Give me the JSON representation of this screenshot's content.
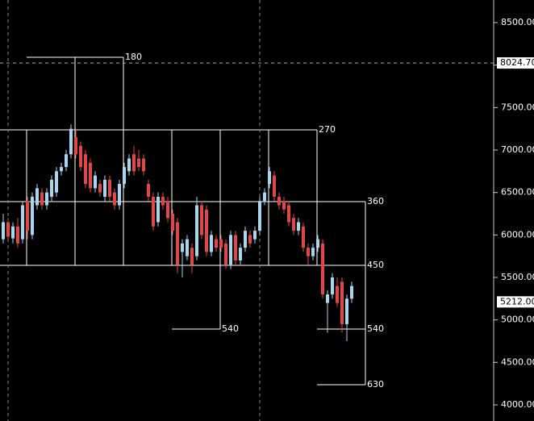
{
  "chart_data": {
    "type": "candlestick",
    "up_color": "#a9d6ee",
    "down_color": "#e04848",
    "ylim": [
      3810,
      8766
    ],
    "yticks": [
      {
        "value": 8500,
        "label": "8500.00"
      },
      {
        "value": 8000,
        "label": "8000.00"
      },
      {
        "value": 7500,
        "label": "7500.00"
      },
      {
        "value": 7000,
        "label": "7000.00"
      },
      {
        "value": 6500,
        "label": "6500.00"
      },
      {
        "value": 6000,
        "label": "6000.00"
      },
      {
        "value": 5500,
        "label": "5500.00"
      },
      {
        "value": 5000,
        "label": "5000.00"
      },
      {
        "value": 4500,
        "label": "4500.00"
      },
      {
        "value": 4000,
        "label": "4000.00"
      }
    ],
    "price_markers": [
      {
        "value": 8024.7,
        "label": "8024.70"
      },
      {
        "value": 5212,
        "label": "5212.00"
      }
    ],
    "annotations": [
      "180",
      "270",
      "360",
      "450",
      "540",
      "540",
      "630"
    ],
    "ohlc": [
      [
        5950,
        6250,
        5900,
        6150
      ],
      [
        6150,
        6200,
        5950,
        5980
      ],
      [
        5960,
        6150,
        5900,
        6100
      ],
      [
        6100,
        6200,
        5850,
        5900
      ],
      [
        5950,
        6400,
        5900,
        6350
      ],
      [
        6400,
        6450,
        5950,
        6050
      ],
      [
        6000,
        6500,
        5950,
        6450
      ],
      [
        6350,
        6600,
        6300,
        6550
      ],
      [
        6500,
        6550,
        6300,
        6350
      ],
      [
        6350,
        6550,
        6300,
        6500
      ],
      [
        6450,
        6700,
        6400,
        6650
      ],
      [
        6500,
        6800,
        6450,
        6750
      ],
      [
        6750,
        6850,
        6700,
        6800
      ],
      [
        6800,
        7000,
        6750,
        6950
      ],
      [
        6950,
        7300,
        6900,
        7250
      ],
      [
        7150,
        7250,
        6900,
        6950
      ],
      [
        7050,
        7100,
        6750,
        6800
      ],
      [
        6950,
        7000,
        6550,
        6600
      ],
      [
        6850,
        6900,
        6500,
        6550
      ],
      [
        6550,
        6750,
        6500,
        6700
      ],
      [
        6600,
        6650,
        6450,
        6500
      ],
      [
        6450,
        6700,
        6400,
        6650
      ],
      [
        6650,
        6700,
        6400,
        6450
      ],
      [
        6500,
        6550,
        6300,
        6350
      ],
      [
        6350,
        6650,
        6300,
        6600
      ],
      [
        6600,
        6850,
        6550,
        6800
      ],
      [
        6750,
        6950,
        6700,
        6900
      ],
      [
        6950,
        7050,
        6700,
        6750
      ],
      [
        6900,
        7000,
        6750,
        6800
      ],
      [
        6900,
        6950,
        6700,
        6750
      ],
      [
        6600,
        6650,
        6400,
        6450
      ],
      [
        6450,
        6500,
        6050,
        6100
      ],
      [
        6150,
        6500,
        6100,
        6450
      ],
      [
        6450,
        6500,
        6300,
        6350
      ],
      [
        6400,
        6450,
        6150,
        6200
      ],
      [
        6250,
        6300,
        6000,
        6050
      ],
      [
        6150,
        6200,
        5550,
        5650
      ],
      [
        5800,
        5950,
        5500,
        5900
      ],
      [
        5750,
        6000,
        5700,
        5950
      ],
      [
        5850,
        5900,
        5550,
        5650
      ],
      [
        5750,
        6450,
        5700,
        6350
      ],
      [
        6350,
        6400,
        5950,
        6000
      ],
      [
        6300,
        6350,
        5750,
        5800
      ],
      [
        5800,
        6050,
        5750,
        6000
      ],
      [
        5950,
        6000,
        5800,
        5850
      ],
      [
        5950,
        6000,
        5800,
        5850
      ],
      [
        5900,
        5950,
        5600,
        5650
      ],
      [
        5650,
        6050,
        5600,
        6000
      ],
      [
        6000,
        6050,
        5650,
        5700
      ],
      [
        5700,
        5900,
        5650,
        5850
      ],
      [
        5850,
        6100,
        5800,
        6050
      ],
      [
        6000,
        6050,
        5850,
        5900
      ],
      [
        5950,
        6100,
        5900,
        6050
      ],
      [
        6050,
        6450,
        6000,
        6400
      ],
      [
        6400,
        6550,
        6350,
        6500
      ],
      [
        6600,
        6800,
        6550,
        6750
      ],
      [
        6700,
        6750,
        6400,
        6450
      ],
      [
        6450,
        6500,
        6300,
        6350
      ],
      [
        6400,
        6450,
        6250,
        6300
      ],
      [
        6350,
        6400,
        6100,
        6150
      ],
      [
        6200,
        6250,
        6000,
        6050
      ],
      [
        6050,
        6200,
        6000,
        6150
      ],
      [
        6100,
        6150,
        5800,
        5850
      ],
      [
        5850,
        5900,
        5650,
        5750
      ],
      [
        5750,
        5900,
        5700,
        5850
      ],
      [
        5850,
        6000,
        5800,
        5950
      ],
      [
        5900,
        5950,
        5250,
        5300
      ],
      [
        5200,
        5350,
        4850,
        5300
      ],
      [
        5300,
        5550,
        5250,
        5500
      ],
      [
        5400,
        5500,
        5150,
        5200
      ],
      [
        5450,
        5500,
        4850,
        4950
      ],
      [
        4950,
        5300,
        4750,
        5250
      ],
      [
        5250,
        5450,
        5200,
        5400
      ]
    ]
  }
}
